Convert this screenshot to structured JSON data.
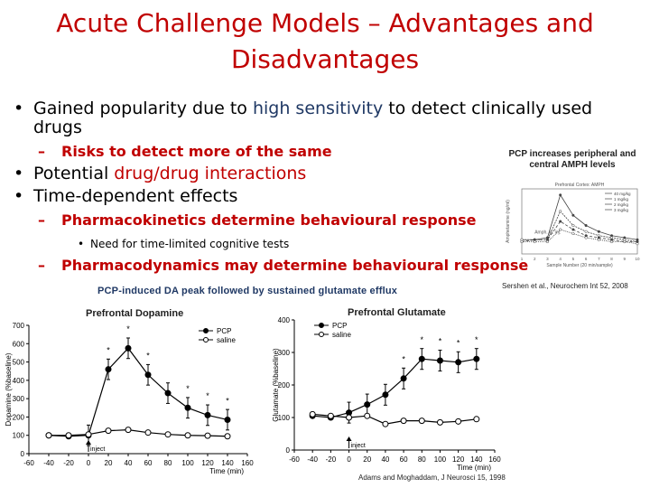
{
  "slide": {
    "title": "Acute Challenge Models – Advantages and Disadvantages",
    "bullet1": {
      "pre": "Gained popularity due to ",
      "highlight": "high sensitivity",
      "post": " to detect clinically used drugs"
    },
    "sub1": "Risks to detect more of the same",
    "bullet2": {
      "pre": "Potential ",
      "bold": "drug/drug interactions"
    },
    "bullet3": "Time-dependent effects",
    "sub2": "Pharmacokinetics determine behavioural response",
    "subsub": "Need for time-limited cognitive tests",
    "sub3": "Pharmacodynamics may determine behavioural response",
    "bullet_symbol": "•",
    "dash_symbol": "–"
  },
  "captions": {
    "pcp_amph": "PCP increases peripheral and central AMPH levels",
    "pcp_da": "PCP-induced DA peak followed by sustained glutamate efflux",
    "prefrontal_dopamine": "Prefrontal Dopamine",
    "prefrontal_glutamate": "Prefrontal Glutamate",
    "ref_amph": "Sershen et al., Neurochem Int 52, 2008",
    "ref_da": "Adams and Moghaddam, J Neurosci 15, 1998"
  },
  "chart_data": [
    {
      "type": "line",
      "title": "Prefrontal Dopamine",
      "xlabel": "Time (min)",
      "ylabel": "Dopamine (%baseline)",
      "xlim": [
        -60,
        160
      ],
      "ylim": [
        0,
        700
      ],
      "x_ticks": [
        -60,
        -40,
        -20,
        0,
        20,
        40,
        60,
        80,
        100,
        120,
        140,
        160
      ],
      "y_ticks": [
        0,
        100,
        200,
        300,
        400,
        500,
        600,
        700
      ],
      "legend": [
        "PCP",
        "saline"
      ],
      "annotation": "inject",
      "series": [
        {
          "name": "PCP",
          "marker": "filled",
          "x": [
            -40,
            -20,
            0,
            20,
            40,
            60,
            80,
            100,
            120,
            140
          ],
          "y": [
            100,
            95,
            100,
            460,
            575,
            430,
            330,
            250,
            210,
            185
          ]
        },
        {
          "name": "saline",
          "marker": "open",
          "x": [
            -40,
            -20,
            0,
            20,
            40,
            60,
            80,
            100,
            120,
            140
          ],
          "y": [
            100,
            100,
            105,
            125,
            130,
            115,
            105,
            100,
            98,
            95
          ]
        }
      ],
      "significance": "*",
      "significant_x": [
        20,
        40,
        60,
        100,
        120,
        140
      ]
    },
    {
      "type": "line",
      "title": "Prefrontal Glutamate",
      "xlabel": "Time (min)",
      "ylabel": "Glutamate (%baseline)",
      "xlim": [
        -60,
        160
      ],
      "ylim": [
        0,
        400
      ],
      "x_ticks": [
        -60,
        -40,
        -20,
        0,
        20,
        40,
        60,
        80,
        100,
        120,
        140,
        160
      ],
      "y_ticks": [
        0,
        100,
        200,
        300,
        400
      ],
      "legend": [
        "PCP",
        "saline"
      ],
      "annotation": "inject",
      "series": [
        {
          "name": "PCP",
          "marker": "filled",
          "x": [
            -40,
            -20,
            0,
            20,
            40,
            60,
            80,
            100,
            120,
            140
          ],
          "y": [
            105,
            100,
            115,
            140,
            170,
            220,
            280,
            275,
            270,
            280
          ]
        },
        {
          "name": "saline",
          "marker": "open",
          "x": [
            -40,
            -20,
            0,
            20,
            40,
            60,
            80,
            100,
            120,
            140
          ],
          "y": [
            110,
            105,
            100,
            105,
            80,
            90,
            90,
            85,
            88,
            95
          ]
        }
      ],
      "significance": "*",
      "significant_x": [
        60,
        80,
        100,
        120,
        140
      ]
    },
    {
      "type": "line",
      "title": "Prefrontal Cortex: AMPH",
      "ylabel": "Amphetamine (ng/ml)",
      "xlabel": "Sample Number (20 min/sample)",
      "x": [
        1,
        2,
        3,
        4,
        5,
        6,
        7,
        8,
        9,
        10
      ],
      "legend": [
        "40 mg/kg",
        "1 mg/kg",
        "2 mg/kg",
        "3 mg/kg"
      ],
      "annotation": "Amph. ip. inj.",
      "series": [
        {
          "name": "40 mg/kg",
          "y": [
            0.7,
            0.7,
            0.8,
            2.9,
            1.9,
            1.4,
            1.1,
            0.9,
            0.8,
            0.7
          ]
        },
        {
          "name": "1 mg/kg",
          "y": [
            0.7,
            0.7,
            0.7,
            2.1,
            1.4,
            1.1,
            0.9,
            0.8,
            0.7,
            0.6
          ]
        },
        {
          "name": "2 mg/kg",
          "y": [
            0.6,
            0.7,
            0.7,
            1.6,
            1.2,
            0.9,
            0.8,
            0.7,
            0.6,
            0.6
          ]
        },
        {
          "name": "3 mg/kg",
          "y": [
            0.6,
            0.6,
            0.6,
            1.2,
            1.0,
            0.8,
            0.7,
            0.6,
            0.6,
            0.5
          ]
        }
      ]
    }
  ]
}
